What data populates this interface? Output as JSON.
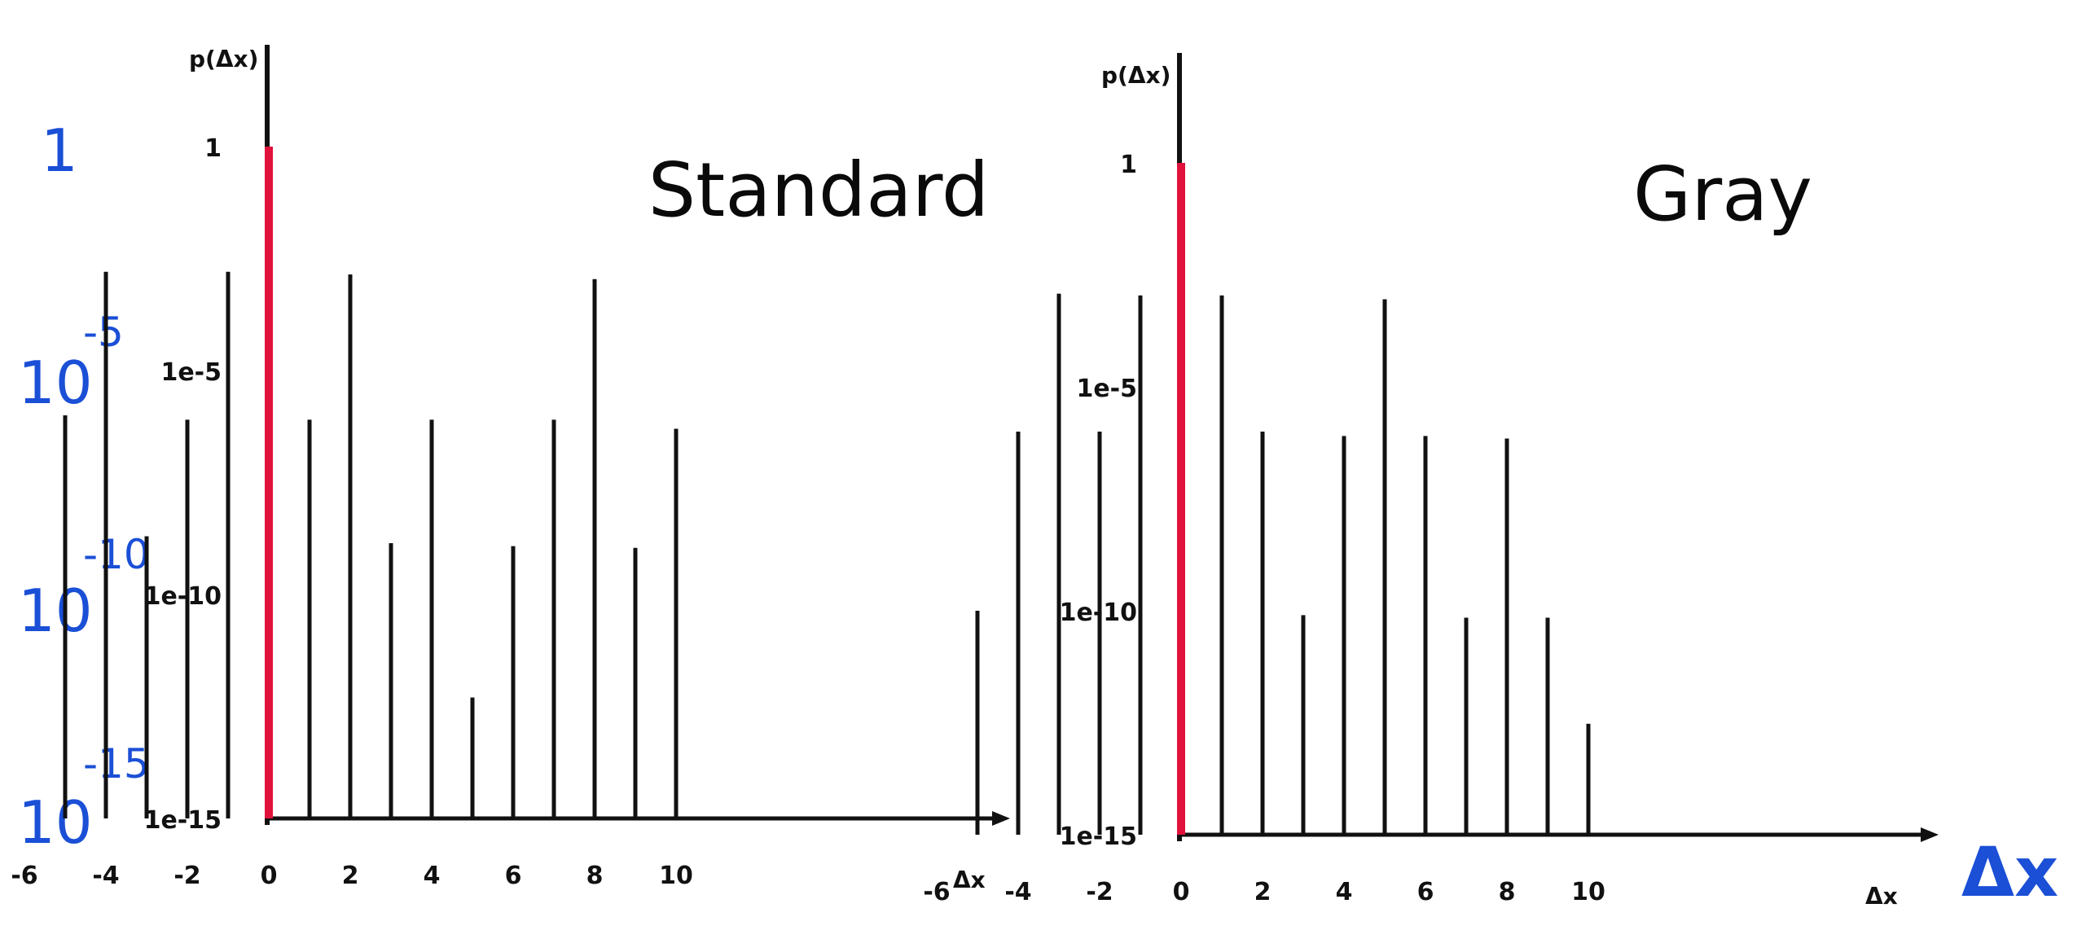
{
  "colors": {
    "stem": "#111111",
    "highlight": "#e0123c",
    "annotation": "#1a4fd6"
  },
  "annotation": {
    "y_labels": [
      {
        "base": "1",
        "exp": ""
      },
      {
        "base": "10",
        "exp": "-5"
      },
      {
        "base": "10",
        "exp": "-10"
      },
      {
        "base": "10",
        "exp": "-15"
      }
    ],
    "x_label": "Δx"
  },
  "chart_data": [
    {
      "type": "stem",
      "title": "Standard",
      "ylabel": "p(Δx)",
      "xlabel": "Δx",
      "y_scale": "log",
      "ylim": [
        1e-15,
        1
      ],
      "xlim": [
        -6,
        11
      ],
      "x_ticks": [
        "-6",
        "-4",
        "-2",
        "0",
        "2",
        "4",
        "6",
        "8",
        "10"
      ],
      "y_ticks": [
        "1",
        "1e-5",
        "1e-10",
        "1e-15"
      ],
      "highlight_x": 0,
      "x": [
        -5,
        -4,
        -3,
        -2,
        -1,
        0,
        1,
        2,
        3,
        4,
        5,
        6,
        7,
        8,
        9,
        10
      ],
      "values": [
        1e-06,
        0.0016,
        2e-09,
        8e-07,
        0.0016,
        1,
        8e-07,
        0.0014,
        1.4e-09,
        8e-07,
        5e-13,
        1.2e-09,
        8e-07,
        0.0011,
        1.1e-09,
        5e-07
      ]
    },
    {
      "type": "stem",
      "title": "Gray",
      "ylabel": "p(Δx)",
      "xlabel": "Δx",
      "y_scale": "log",
      "ylim": [
        1e-15,
        1
      ],
      "xlim": [
        -6,
        11
      ],
      "x_ticks": [
        "-6",
        "-4",
        "-2",
        "0",
        "2",
        "4",
        "6",
        "8",
        "10"
      ],
      "y_ticks": [
        "1",
        "1e-5",
        "1e-10",
        "1e-15"
      ],
      "highlight_x": 0,
      "x": [
        -5,
        -4,
        -3,
        -2,
        -1,
        0,
        1,
        2,
        3,
        4,
        5,
        6,
        7,
        8,
        9,
        10
      ],
      "values": [
        1e-10,
        1e-06,
        0.0012,
        1e-06,
        0.0011,
        1,
        0.0011,
        1e-06,
        8e-11,
        8e-07,
        0.0009,
        8e-07,
        7e-11,
        7e-07,
        7e-11,
        3e-13
      ]
    }
  ]
}
